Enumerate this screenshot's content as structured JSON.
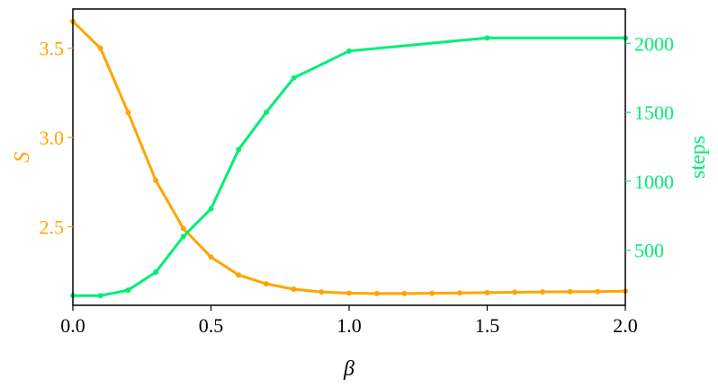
{
  "chart_data": {
    "type": "line",
    "xlabel": "β",
    "ylabel_left": "S",
    "ylabel_right": "steps",
    "xlim": [
      0.0,
      2.0
    ],
    "ylim_left": [
      2.06,
      3.72
    ],
    "ylim_right": [
      100,
      2250
    ],
    "x_ticks": [
      {
        "value": 0.0,
        "label": "0.0"
      },
      {
        "value": 0.5,
        "label": "0.5"
      },
      {
        "value": 1.0,
        "label": "1.0"
      },
      {
        "value": 1.5,
        "label": "1.5"
      },
      {
        "value": 2.0,
        "label": "2.0"
      }
    ],
    "y_left_ticks": [
      {
        "value": 2.5,
        "label": "2.5"
      },
      {
        "value": 3.0,
        "label": "3.0"
      },
      {
        "value": 3.5,
        "label": "3.5"
      }
    ],
    "y_right_ticks": [
      {
        "value": 500,
        "label": "500"
      },
      {
        "value": 1000,
        "label": "1000"
      },
      {
        "value": 1500,
        "label": "1500"
      },
      {
        "value": 2000,
        "label": "2000"
      }
    ],
    "grid": false,
    "series": [
      {
        "axis": "left",
        "color": "#FFA500",
        "x": [
          0.0,
          0.1,
          0.2,
          0.3,
          0.4,
          0.5,
          0.6,
          0.7,
          0.8,
          0.9,
          1.0,
          1.1,
          1.2,
          1.3,
          1.4,
          1.5,
          1.6,
          1.7,
          1.8,
          1.9,
          2.0
        ],
        "values": [
          3.65,
          3.5,
          3.14,
          2.76,
          2.49,
          2.33,
          2.23,
          2.18,
          2.15,
          2.135,
          2.128,
          2.126,
          2.126,
          2.127,
          2.129,
          2.131,
          2.133,
          2.135,
          2.136,
          2.137,
          2.139
        ]
      },
      {
        "axis": "right",
        "color": "#00EE76",
        "x": [
          0.0,
          0.1,
          0.2,
          0.3,
          0.4,
          0.5,
          0.6,
          0.7,
          0.8,
          1.0,
          1.5,
          2.0
        ],
        "values": [
          170,
          170,
          210,
          340,
          600,
          800,
          1230,
          1500,
          1750,
          1945,
          2040,
          2040
        ]
      }
    ]
  }
}
